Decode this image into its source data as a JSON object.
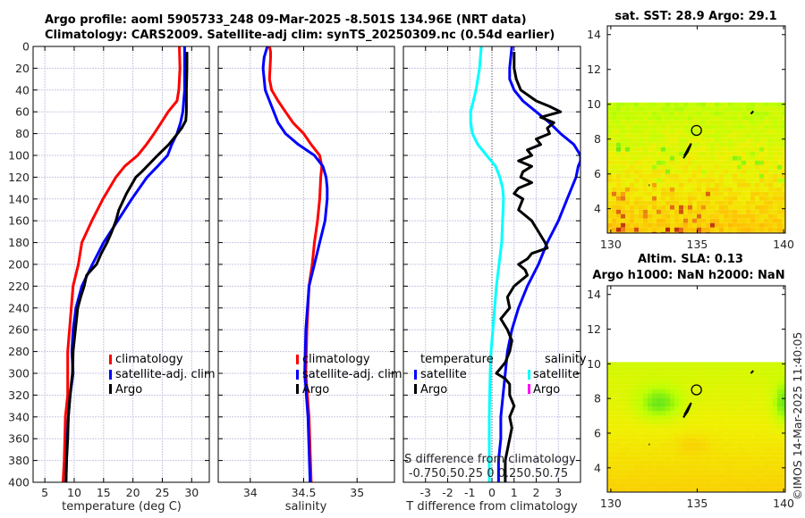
{
  "header": {
    "title_line1": "Argo profile: aoml 5905733_248 09-Mar-2025 -8.501S 134.96E (NRT data)",
    "title_line2": "Climatology: CARS2009. Satellite-adj clim: synTS_20250309.nc (0.54d earlier)"
  },
  "colors": {
    "climatology": "#ff0000",
    "satellite": "#0000ff",
    "argo": "#000000",
    "salinity_satellite": "#00ffff",
    "salinity_argo": "#ff00ff",
    "grid": "#c8c8e6"
  },
  "chart_data": [
    {
      "id": "temperature",
      "type": "line",
      "xlabel": "temperature (deg C)",
      "ylabel": "",
      "xlim": [
        3,
        33
      ],
      "ylim": [
        400,
        0
      ],
      "xticks": [
        "5",
        "10",
        "15",
        "20",
        "25",
        "30"
      ],
      "xtick_values": [
        5,
        10,
        15,
        20,
        25,
        30
      ],
      "yticks": [
        "0",
        "20",
        "40",
        "60",
        "80",
        "100",
        "120",
        "140",
        "160",
        "180",
        "200",
        "220",
        "240",
        "260",
        "280",
        "300",
        "320",
        "340",
        "360",
        "380",
        "400"
      ],
      "ytick_values": [
        0,
        20,
        40,
        60,
        80,
        100,
        120,
        140,
        160,
        180,
        200,
        220,
        240,
        260,
        280,
        300,
        320,
        340,
        360,
        380,
        400
      ],
      "grid": true,
      "legend": [
        "climatology",
        "satellite-adj. clim",
        "Argo"
      ],
      "legend_position": "lower-right",
      "series": [
        {
          "name": "climatology",
          "color": "#ff0000",
          "depth": [
            0,
            20,
            40,
            50,
            60,
            70,
            80,
            90,
            100,
            110,
            120,
            140,
            160,
            180,
            200,
            220,
            240,
            260,
            280,
            300,
            320,
            340,
            360,
            380,
            400
          ],
          "values": [
            27.9,
            28.0,
            27.8,
            27.5,
            26.0,
            24.8,
            23.6,
            22.3,
            20.8,
            18.6,
            17.1,
            14.9,
            13.0,
            11.3,
            10.7,
            9.8,
            9.5,
            9.2,
            8.9,
            8.9,
            8.9,
            8.5,
            8.4,
            8.3,
            8.1
          ]
        },
        {
          "name": "satellite-adj. clim",
          "color": "#0000ff",
          "depth": [
            0,
            20,
            40,
            60,
            70,
            80,
            90,
            100,
            110,
            120,
            140,
            160,
            180,
            200,
            220,
            240,
            260,
            280,
            300,
            320,
            340,
            360,
            380,
            400
          ],
          "values": [
            28.8,
            28.8,
            28.8,
            28.5,
            28.1,
            27.5,
            26.6,
            25.9,
            24.2,
            22.4,
            19.8,
            17.4,
            15.0,
            13.1,
            11.3,
            10.3,
            9.8,
            9.6,
            9.8,
            9.3,
            9.0,
            8.8,
            8.7,
            8.6
          ]
        },
        {
          "name": "Argo",
          "color": "#000000",
          "depth": [
            5,
            20,
            40,
            60,
            68,
            75,
            80,
            90,
            100,
            110,
            115,
            120,
            135,
            150,
            160,
            170,
            180,
            190,
            200,
            210,
            220,
            230,
            240,
            260,
            280,
            300,
            320,
            340,
            360,
            380,
            400
          ],
          "values": [
            29.2,
            29.2,
            29.1,
            29.1,
            29.0,
            28.3,
            27.6,
            26.1,
            24.2,
            22.4,
            21.5,
            20.5,
            18.9,
            17.6,
            17.1,
            16.4,
            15.6,
            14.6,
            13.8,
            12.1,
            11.7,
            11.1,
            10.6,
            10.2,
            9.8,
            9.7,
            9.3,
            9.0,
            8.9,
            8.7,
            8.6
          ]
        }
      ]
    },
    {
      "id": "salinity",
      "type": "line",
      "xlabel": "salinity",
      "xlim": [
        33.7,
        35.35
      ],
      "ylim": [
        400,
        0
      ],
      "xticks": [
        "34",
        "34.5",
        "35"
      ],
      "xtick_values": [
        34,
        34.5,
        35
      ],
      "grid": true,
      "legend": [
        "climatology",
        "satellite-adj. clim",
        "Argo"
      ],
      "legend_position": "lower-right",
      "series": [
        {
          "name": "climatology",
          "color": "#ff0000",
          "depth": [
            0,
            5,
            10,
            30,
            40,
            50,
            60,
            70,
            80,
            90,
            100,
            110,
            120,
            140,
            160,
            180,
            200,
            220,
            260,
            300,
            340,
            400
          ],
          "values": [
            34.18,
            34.19,
            34.19,
            34.18,
            34.2,
            34.26,
            34.33,
            34.4,
            34.5,
            34.57,
            34.65,
            34.67,
            34.66,
            34.65,
            34.63,
            34.6,
            34.58,
            34.55,
            34.53,
            34.52,
            34.55,
            34.57
          ]
        },
        {
          "name": "satellite-adj. clim",
          "color": "#0000ff",
          "depth": [
            0,
            10,
            20,
            40,
            50,
            60,
            70,
            80,
            90,
            100,
            110,
            120,
            130,
            140,
            160,
            180,
            200,
            220,
            260,
            300,
            340,
            400
          ],
          "values": [
            34.16,
            34.13,
            34.12,
            34.14,
            34.18,
            34.22,
            34.26,
            34.33,
            34.45,
            34.6,
            34.68,
            34.71,
            34.72,
            34.72,
            34.7,
            34.65,
            34.6,
            34.55,
            34.52,
            34.51,
            34.54,
            34.56
          ]
        }
      ]
    },
    {
      "id": "difference",
      "type": "line",
      "xlabel": "T difference from climatology",
      "xlabel_top": "S difference from climatology",
      "xlim": [
        -4,
        4
      ],
      "ylim": [
        400,
        0
      ],
      "xticks": [
        "-3",
        "-2",
        "-1",
        "0",
        "1",
        "2",
        "3"
      ],
      "xtick_values": [
        -3,
        -2,
        -1,
        0,
        1,
        2,
        3
      ],
      "xticks_secondary": "-0.750.50.25 0 0.250.50.75",
      "grid": true,
      "legend_temperature_title": "temperature",
      "legend_salinity_title": "salinity",
      "legend_temperature": [
        "satellite",
        "Argo"
      ],
      "legend_salinity": [
        "satellite",
        "Argo"
      ],
      "series": [
        {
          "name": "temperature satellite",
          "color": "#0000ff",
          "depth": [
            0,
            20,
            30,
            40,
            50,
            60,
            70,
            80,
            90,
            100,
            105,
            110,
            120,
            140,
            160,
            180,
            200,
            220,
            240,
            260,
            280,
            300,
            320,
            340,
            360,
            380,
            400
          ],
          "values": [
            0.9,
            0.8,
            0.8,
            1.0,
            1.4,
            2.0,
            2.6,
            3.1,
            3.7,
            4.0,
            4.0,
            3.9,
            3.8,
            3.4,
            3.0,
            2.5,
            2.1,
            1.6,
            1.2,
            0.9,
            0.7,
            0.6,
            0.5,
            0.4,
            0.4,
            0.3,
            0.3
          ]
        },
        {
          "name": "temperature Argo",
          "color": "#000000",
          "depth": [
            5,
            20,
            30,
            40,
            50,
            55,
            60,
            65,
            70,
            75,
            80,
            85,
            90,
            95,
            100,
            105,
            110,
            115,
            120,
            125,
            130,
            135,
            140,
            150,
            160,
            170,
            180,
            185,
            190,
            195,
            200,
            205,
            210,
            220,
            230,
            240,
            250,
            260,
            270,
            280,
            290,
            300,
            305,
            310,
            320,
            330,
            340,
            350,
            360,
            380,
            400
          ],
          "values": [
            1.0,
            1.0,
            1.1,
            1.3,
            2.0,
            2.6,
            3.1,
            2.2,
            2.8,
            2.5,
            2.6,
            2.0,
            2.2,
            1.6,
            1.8,
            1.2,
            1.8,
            1.4,
            1.3,
            1.8,
            1.2,
            1.0,
            1.4,
            1.2,
            1.8,
            2.1,
            2.4,
            2.5,
            1.8,
            1.6,
            1.2,
            1.5,
            1.6,
            1.0,
            0.7,
            0.8,
            0.4,
            0.7,
            0.9,
            0.8,
            0.6,
            0.2,
            0.6,
            0.8,
            0.8,
            1.0,
            0.8,
            0.9,
            0.8,
            0.6,
            0.6
          ]
        },
        {
          "name": "salinity satellite",
          "color": "#00ffff",
          "depth": [
            0,
            20,
            40,
            60,
            70,
            80,
            90,
            100,
            110,
            120,
            130,
            140,
            160,
            180,
            200,
            220,
            240,
            260,
            280,
            300,
            340,
            400
          ],
          "values": [
            -0.12,
            -0.14,
            -0.18,
            -0.24,
            -0.24,
            -0.22,
            -0.16,
            -0.06,
            0.04,
            0.09,
            0.12,
            0.13,
            0.12,
            0.11,
            0.08,
            0.05,
            0.03,
            0.01,
            -0.01,
            -0.02,
            -0.03,
            -0.03
          ]
        }
      ]
    },
    {
      "id": "sst-map",
      "type": "heatmap",
      "title": "sat. SST: 28.9 Argo: 29.1",
      "xlim": [
        129.8,
        140.1
      ],
      "ylim": [
        2.6,
        14.5
      ],
      "xticks": [
        "130",
        "135",
        "140"
      ],
      "xtick_values": [
        130,
        135,
        140
      ],
      "yticks": [
        "4",
        "6",
        "8",
        "10",
        "12",
        "14"
      ],
      "ytick_values": [
        4,
        6,
        8,
        10,
        12,
        14
      ],
      "data_top_lat": 10.1,
      "marker": {
        "lon": 134.96,
        "lat": 8.5,
        "label": "Argo position"
      }
    },
    {
      "id": "sla-map",
      "type": "heatmap",
      "title_line1": "Altim. SLA: 0.13",
      "title_line2": "Argo h1000: NaN h2000: NaN",
      "xlim": [
        129.8,
        140.1
      ],
      "ylim": [
        2.6,
        14.5
      ],
      "xticks": [
        "130",
        "135",
        "140"
      ],
      "xtick_values": [
        130,
        135,
        140
      ],
      "yticks": [
        "4",
        "6",
        "8",
        "10",
        "12",
        "14"
      ],
      "ytick_values": [
        4,
        6,
        8,
        10,
        12,
        14
      ],
      "data_top_lat": 10.1,
      "marker": {
        "lon": 134.96,
        "lat": 8.5,
        "label": "Argo position"
      }
    }
  ],
  "footer": {
    "credit": "©IMOS 14-Mar-2025 11:40:05"
  }
}
